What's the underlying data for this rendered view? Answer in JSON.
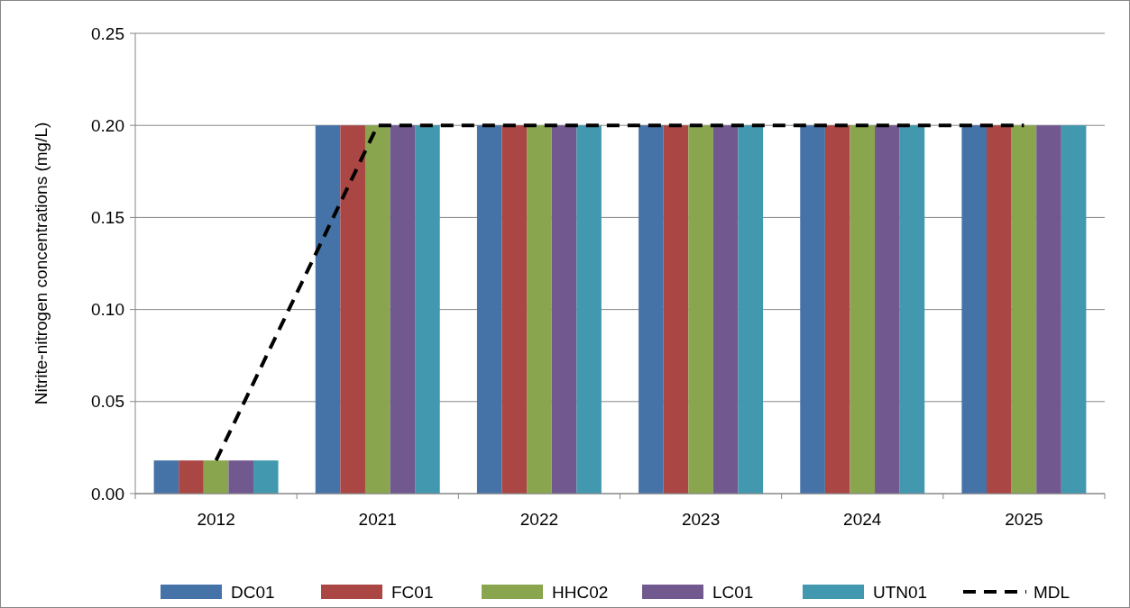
{
  "chart_data": {
    "type": "bar",
    "ylabel": "Nitrite-nitrogen concentrations (mg/L)",
    "categories": [
      "2012",
      "2021",
      "2022",
      "2023",
      "2024",
      "2025"
    ],
    "series": [
      {
        "name": "DC01",
        "color": "#4572a7",
        "values": [
          0.018,
          0.2,
          0.2,
          0.2,
          0.2,
          0.2
        ]
      },
      {
        "name": "FC01",
        "color": "#aa4643",
        "values": [
          0.018,
          0.2,
          0.2,
          0.2,
          0.2,
          0.2
        ]
      },
      {
        "name": "HHC02",
        "color": "#89a54e",
        "values": [
          0.018,
          0.2,
          0.2,
          0.2,
          0.2,
          0.2
        ]
      },
      {
        "name": "LC01",
        "color": "#71588f",
        "values": [
          0.018,
          0.2,
          0.2,
          0.2,
          0.2,
          0.2
        ]
      },
      {
        "name": "UTN01",
        "color": "#4198af",
        "values": [
          0.018,
          0.2,
          0.2,
          0.2,
          0.2,
          0.2
        ]
      },
      {
        "name": "MDL",
        "type": "line",
        "color": "#000000",
        "line_style": "dashed",
        "values": [
          0.018,
          0.2,
          0.2,
          0.2,
          0.2,
          0.2
        ]
      }
    ],
    "ylim": [
      0,
      0.25
    ],
    "yticks": [
      {
        "value": 0,
        "label": "0.00"
      },
      {
        "value": 0.05,
        "label": "0.05"
      },
      {
        "value": 0.1,
        "label": "0.10"
      },
      {
        "value": 0.15,
        "label": "0.15"
      },
      {
        "value": 0.2,
        "label": "0.20"
      },
      {
        "value": 0.25,
        "label": "0.25"
      }
    ],
    "grid": "y",
    "legend": "bottom"
  }
}
